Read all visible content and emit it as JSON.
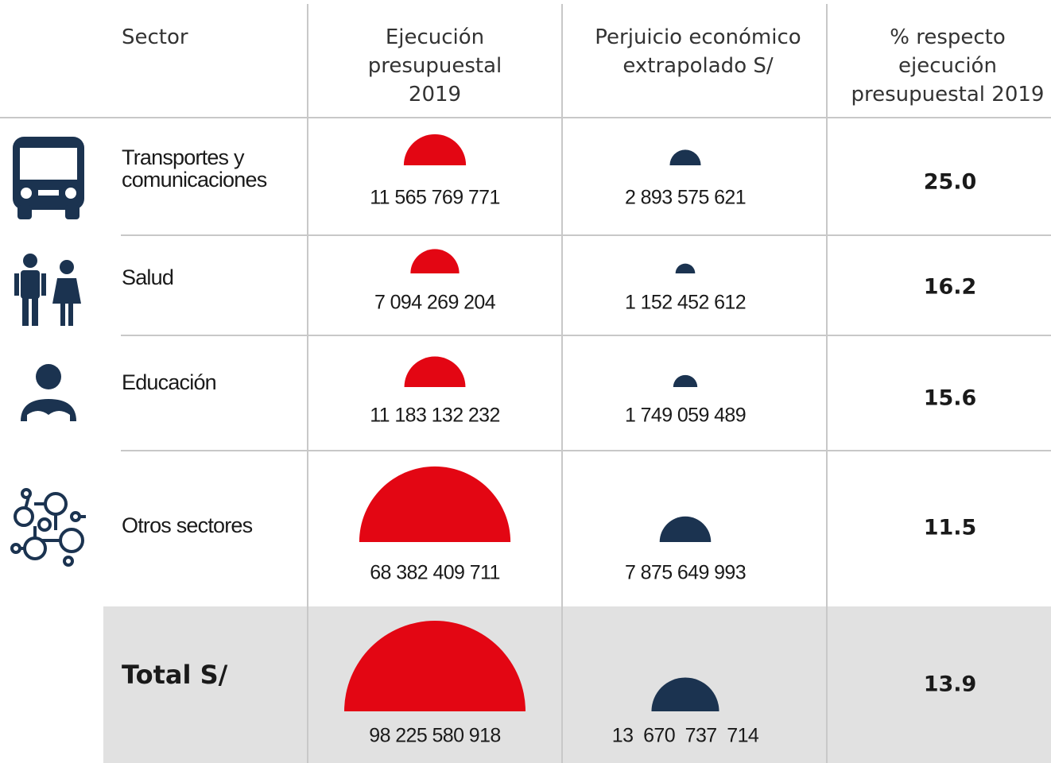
{
  "header": {
    "sector": [
      "Sector"
    ],
    "ejecucion": [
      "Ejecución",
      "presupuestal",
      "2019"
    ],
    "perjuicio": [
      "Perjuicio económico",
      "extrapolado S/"
    ],
    "porcentaje": [
      "% respecto",
      "ejecución",
      "presupuestal 2019"
    ]
  },
  "table": {
    "rows": [
      {
        "sector": [
          "Transportes y",
          "comunicaciones"
        ],
        "ejecucion": {
          "value": 11565769771,
          "label": "11 565 769 771"
        },
        "perjuicio": {
          "value": 2893575621,
          "label": "2 893 575 621"
        },
        "porcentaje": "25.0"
      },
      {
        "sector": [
          "Salud"
        ],
        "ejecucion": {
          "value": 7094269204,
          "label": "7 094 269 204"
        },
        "perjuicio": {
          "value": 1152452612,
          "label": "1 152 452 612"
        },
        "porcentaje": "16.2"
      },
      {
        "sector": [
          "Educación"
        ],
        "ejecucion": {
          "value": 11183132232,
          "label": "11 183 132 232"
        },
        "perjuicio": {
          "value": 1749059489,
          "label": "1 749 059 489"
        },
        "porcentaje": "15.6"
      },
      {
        "sector": [
          "Otros sectores"
        ],
        "ejecucion": {
          "value": 68382409711,
          "label": "68 382 409 711"
        },
        "perjuicio": {
          "value": 7875649993,
          "label": "7 875 649 993"
        },
        "porcentaje": "11.5"
      }
    ],
    "total": {
      "sector": [
        "Total S/"
      ],
      "ejecucion": {
        "value": 98225580918,
        "label": "98 225 580 918"
      },
      "perjuicio": {
        "value": 13670737714,
        "label": "13  670  737  714"
      },
      "porcentaje": "13.9"
    }
  }
}
